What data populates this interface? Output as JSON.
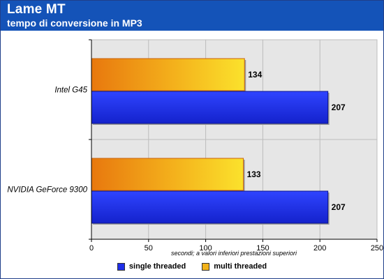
{
  "header": {
    "title": "Lame MT",
    "subtitle": "tempo di conversione in MP3"
  },
  "colors": {
    "header_bg": "#1453b8",
    "single": "#1f2fe8",
    "multi": "#f2b21a"
  },
  "chart_data": {
    "type": "bar",
    "orientation": "horizontal",
    "categories": [
      "Intel G45",
      "NVIDIA GeForce 9300"
    ],
    "series": [
      {
        "name": "multi threaded",
        "values": [
          134,
          133
        ]
      },
      {
        "name": "single threaded",
        "values": [
          207,
          207
        ]
      }
    ],
    "xlim": [
      0,
      250
    ],
    "x_ticks": [
      0,
      50,
      100,
      150,
      200,
      250
    ],
    "xlabel": "secondi; a valori inferiori prestazioni superiori",
    "grid": true,
    "legend_position": "bottom",
    "legend": [
      "single threaded",
      "multi threaded"
    ]
  }
}
